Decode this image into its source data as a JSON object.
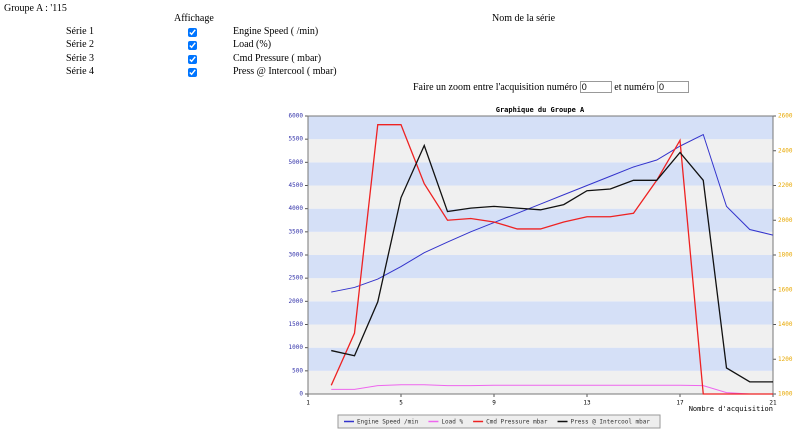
{
  "header": {
    "title": "Groupe A : '115"
  },
  "table": {
    "columns": [
      "Affichage",
      "Nom de la série"
    ],
    "rows": [
      {
        "label": "Série 1",
        "checked": true,
        "name": "Engine Speed ( /min)"
      },
      {
        "label": "Série 2",
        "checked": true,
        "name": "Load (%)"
      },
      {
        "label": "Série 3",
        "checked": true,
        "name": "Cmd Pressure ( mbar)"
      },
      {
        "label": "Série 4",
        "checked": true,
        "name": "Press @ Intercool ( mbar)"
      }
    ]
  },
  "zoom": {
    "label_before": "Faire un zoom entre l'acquisition numéro",
    "from": "0",
    "label_middle": "et numéro",
    "to": "0"
  },
  "chart_data": {
    "type": "line",
    "title": "Graphique du Groupe A",
    "x_label": "Nombre d'acquisition",
    "x": [
      2,
      3,
      4,
      5,
      6,
      7,
      8,
      9,
      10,
      11,
      12,
      13,
      14,
      15,
      16,
      17,
      18,
      19,
      20,
      21
    ],
    "xlim": [
      1,
      21
    ],
    "xticks": [
      1,
      5,
      9,
      13,
      17,
      21
    ],
    "ylim": [
      0,
      6000
    ],
    "yticks": [
      0,
      500,
      1000,
      1500,
      2000,
      2500,
      3000,
      3500,
      4000,
      4500,
      5000,
      5500,
      6000
    ],
    "y2lim": [
      1000,
      2600
    ],
    "y2ticks": [
      1000,
      1200,
      1400,
      1600,
      1800,
      2000,
      2200,
      2400,
      2600
    ],
    "band_colors": [
      "#d5e0f7",
      "#f0f0f0"
    ],
    "series": [
      {
        "name": "Engine Speed  /min",
        "color": "#3333cc",
        "values": [
          2200,
          2300,
          2480,
          2750,
          3050,
          3280,
          3500,
          3700,
          3900,
          4100,
          4300,
          4500,
          4700,
          4900,
          5050,
          5350,
          5600,
          4050,
          3550,
          3430
        ]
      },
      {
        "name": "Load %",
        "color": "#ee66ee",
        "values": [
          100,
          100,
          180,
          200,
          200,
          180,
          180,
          190,
          190,
          190,
          190,
          190,
          190,
          190,
          190,
          190,
          180,
          30,
          0,
          0
        ]
      },
      {
        "name": "Cmd Pressure  mbar",
        "color": "#ee2222",
        "axis": "y2",
        "values": [
          1050,
          1350,
          2550,
          2550,
          2210,
          2000,
          2010,
          1990,
          1950,
          1950,
          1990,
          2020,
          2020,
          2040,
          2230,
          2460,
          1000,
          1000,
          1000,
          1000
        ]
      },
      {
        "name": "Press @ Intercool  mbar",
        "color": "#111111",
        "axis": "y2",
        "values": [
          1250,
          1220,
          1530,
          2130,
          2430,
          2050,
          2070,
          2080,
          2070,
          2060,
          2090,
          2170,
          2180,
          2230,
          2230,
          2390,
          2230,
          1150,
          1070,
          1070
        ]
      }
    ]
  }
}
